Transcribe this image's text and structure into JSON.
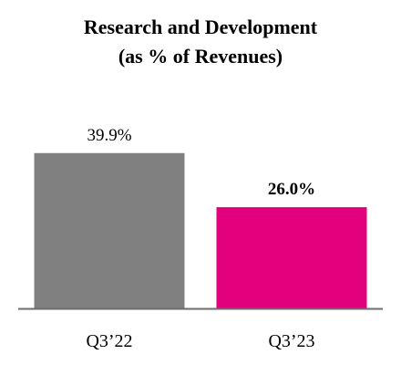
{
  "chart_data": {
    "type": "bar",
    "title": "Research and Development",
    "subtitle": "(as % of Revenues)",
    "categories": [
      "Q3’22",
      "Q3’23"
    ],
    "values": [
      39.9,
      26.0
    ],
    "data_labels": [
      "39.9%",
      "26.0%"
    ],
    "data_label_bold": [
      false,
      true
    ],
    "colors": [
      "#808080",
      "#e3007d"
    ],
    "xlabel": "",
    "ylabel": "",
    "ylim": [
      0,
      60
    ],
    "grid": false,
    "legend": "none",
    "axis_color": "#6d6d6d"
  }
}
